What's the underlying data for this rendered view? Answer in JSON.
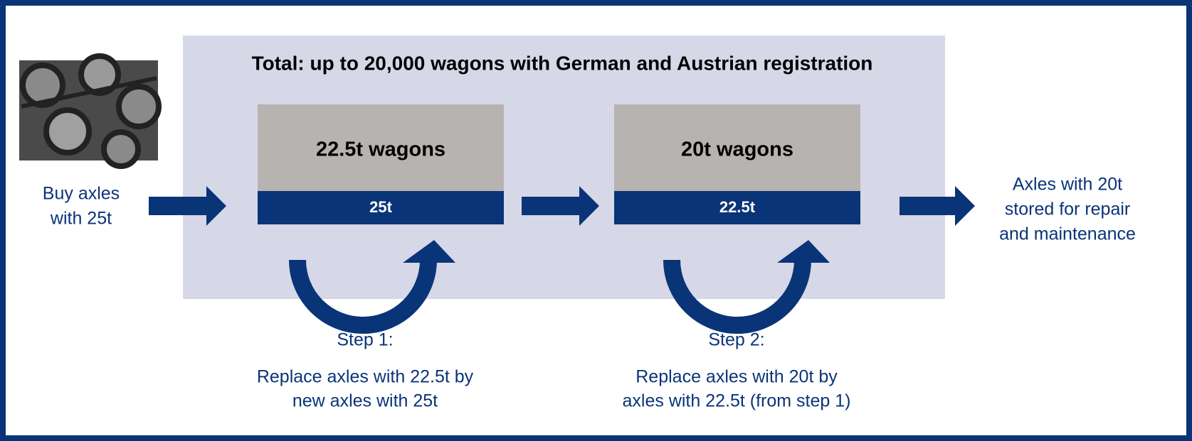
{
  "title": "Total: up to 20,000 wagons with German and Austrian registration",
  "start": [
    "Buy axles",
    "with 25t"
  ],
  "end": [
    "Axles with 20t",
    "stored for repair",
    "and maintenance"
  ],
  "boxes": [
    {
      "label": "22.5t wagons",
      "bar": "25t"
    },
    {
      "label": "20t wagons",
      "bar": "22.5t"
    }
  ],
  "steps": [
    {
      "title": "Step 1:",
      "lines": [
        "Replace axles with 22.5t by",
        "new axles with 25t"
      ]
    },
    {
      "title": "Step 2:",
      "lines": [
        "Replace axles with 20t by",
        "axles with 22.5t (from step 1)"
      ]
    }
  ]
}
